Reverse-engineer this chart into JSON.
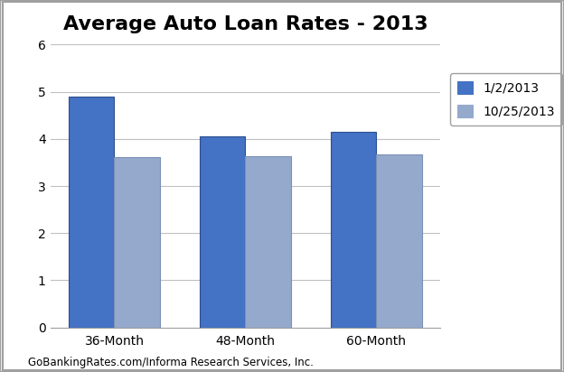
{
  "title": "Average Auto Loan Rates - 2013",
  "categories": [
    "36-Month",
    "48-Month",
    "60-Month"
  ],
  "series": [
    {
      "label": "1/2/2013",
      "values": [
        4.9,
        4.05,
        4.15
      ],
      "color": "#4472C4",
      "edge_color": "#2E4E8E"
    },
    {
      "label": "10/25/2013",
      "values": [
        3.62,
        3.63,
        3.68
      ],
      "color": "#95A9CC",
      "edge_color": "#7B90B5"
    }
  ],
  "ylim": [
    0,
    6
  ],
  "yticks": [
    0,
    1,
    2,
    3,
    4,
    5,
    6
  ],
  "footer_text": "GoBankingRates.com/Informa Research Services, Inc.",
  "background_color": "#FFFFFF",
  "title_fontsize": 16,
  "tick_fontsize": 10,
  "legend_fontsize": 10,
  "footer_fontsize": 8.5,
  "bar_width": 0.35,
  "grid_color": "#C0C0C0",
  "border_color": "#A0A0A0",
  "figure_border_color": "#A0A0A0"
}
